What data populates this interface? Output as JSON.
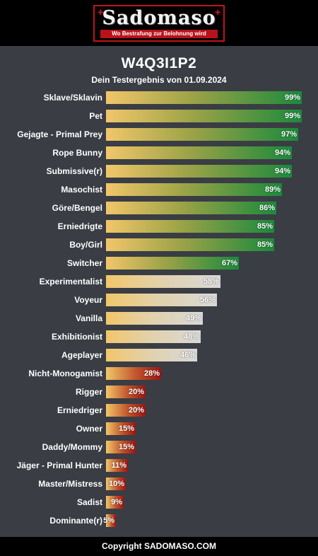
{
  "header": {
    "logo_text": "Sadomaso",
    "logo_tagline": "Wo Bestrafung zur Belohnung wird"
  },
  "result": {
    "title": "W4Q3I1P2",
    "subtitle": "Dein Testergebnis von 01.09.2024"
  },
  "footer": {
    "copyright": "Copyright SADOMASO.COM"
  },
  "colors": {
    "high": "#1a8a3c",
    "mid": "#d9d9d9",
    "low": "#9b1414",
    "start": "#f2c66a"
  },
  "chart_data": {
    "type": "bar",
    "orientation": "horizontal",
    "title": "W4Q3I1P2",
    "subtitle": "Dein Testergebnis von 01.09.2024",
    "unit": "%",
    "xlim": [
      0,
      100
    ],
    "categories": [
      "Sklave/Sklavin",
      "Pet",
      "Gejagte - Primal Prey",
      "Rope Bunny",
      "Submissive(r)",
      "Masochist",
      "Göre/Bengel",
      "Erniedrigte",
      "Boy/Girl",
      "Switcher",
      "Experimentalist",
      "Voyeur",
      "Vanilla",
      "Exhibitionist",
      "Ageplayer",
      "Nicht-Monogamist",
      "Rigger",
      "Erniedriger",
      "Owner",
      "Daddy/Mommy",
      "Jäger - Primal Hunter",
      "Master/Mistress",
      "Sadist",
      "Dominante(r)"
    ],
    "values": [
      99,
      99,
      97,
      94,
      94,
      89,
      86,
      85,
      85,
      67,
      58,
      56,
      49,
      48,
      46,
      28,
      20,
      20,
      15,
      15,
      11,
      10,
      9,
      5
    ],
    "labels": [
      "99%",
      "99%",
      "97%",
      "94%",
      "94%",
      "89%",
      "86%",
      "85%",
      "85%",
      "67%",
      "58%",
      "56%",
      "49%",
      "48%",
      "46%",
      "28%",
      "20%",
      "20%",
      "15%",
      "15%",
      "11%",
      "10%",
      "9%",
      "5%"
    ],
    "color_groups": [
      "high",
      "high",
      "high",
      "high",
      "high",
      "high",
      "high",
      "high",
      "high",
      "high",
      "mid",
      "mid",
      "mid",
      "mid",
      "mid",
      "low",
      "low",
      "low",
      "low",
      "low",
      "low",
      "low",
      "low",
      "low"
    ]
  }
}
